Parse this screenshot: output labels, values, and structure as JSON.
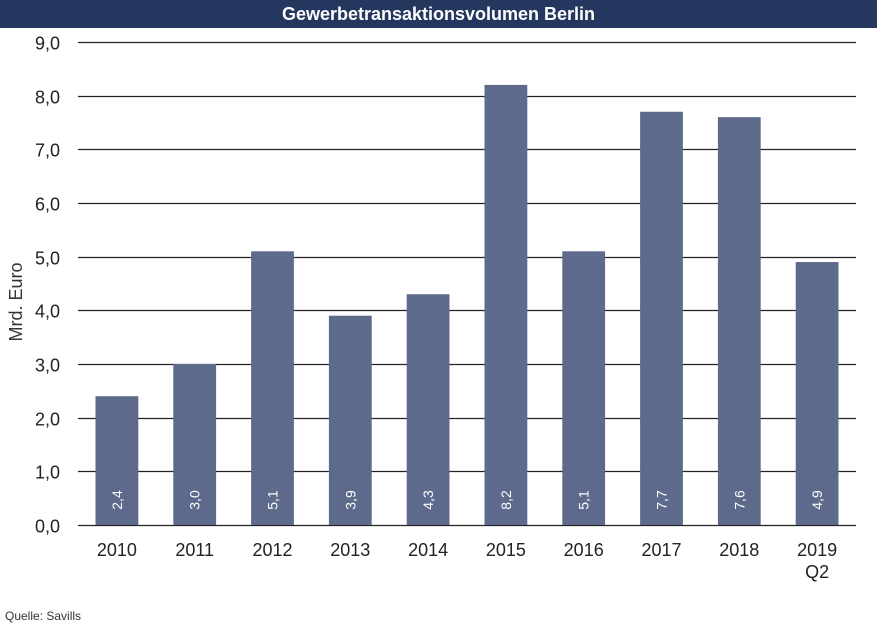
{
  "chart_data": {
    "type": "bar",
    "title": "Gewerbetransaktionsvolumen Berlin",
    "ylabel": "Mrd. Euro",
    "xlabel": "",
    "categories": [
      "2010",
      "2011",
      "2012",
      "2013",
      "2014",
      "2015",
      "2016",
      "2017",
      "2018",
      "2019 Q2"
    ],
    "category_lines": [
      [
        "2010"
      ],
      [
        "2011"
      ],
      [
        "2012"
      ],
      [
        "2013"
      ],
      [
        "2014"
      ],
      [
        "2015"
      ],
      [
        "2016"
      ],
      [
        "2017"
      ],
      [
        "2018"
      ],
      [
        "2019",
        "Q2"
      ]
    ],
    "values": [
      2.4,
      3.0,
      5.1,
      3.9,
      4.3,
      8.2,
      5.1,
      7.7,
      7.6,
      4.9
    ],
    "data_labels": [
      "2,4",
      "3,0",
      "5,1",
      "3,9",
      "4,3",
      "8,2",
      "5,1",
      "7,7",
      "7,6",
      "4,9"
    ],
    "ylim": [
      0,
      9
    ],
    "yticks": [
      0,
      1,
      2,
      3,
      4,
      5,
      6,
      7,
      8,
      9
    ],
    "ytick_labels": [
      "0,0",
      "1,0",
      "2,0",
      "3,0",
      "4,0",
      "5,0",
      "6,0",
      "7,0",
      "8,0",
      "9,0"
    ],
    "grid": true,
    "legend": "none",
    "bar_color": "#5e6a8c",
    "title_bar_color": "#24375e",
    "grid_color": "#222222"
  },
  "source": "Quelle: Savills"
}
